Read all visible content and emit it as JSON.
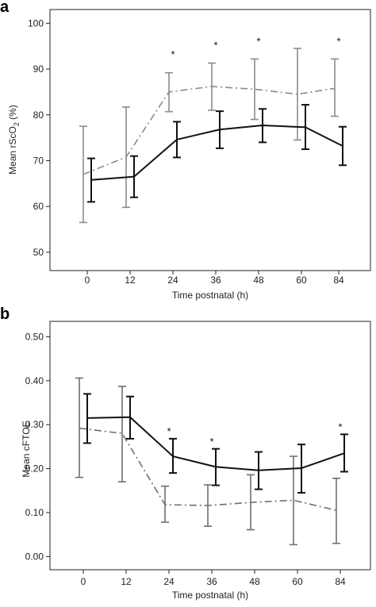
{
  "chart_data": [
    {
      "panel": "a",
      "type": "line",
      "xlabel": "Time postnatal (h)",
      "ylabel_main": "Mean rScO",
      "ylabel_sub": "2",
      "ylabel_tail": " (%)",
      "categories": [
        "0",
        "12",
        "24",
        "36",
        "48",
        "60",
        "84"
      ],
      "yticks": [
        "50",
        "60",
        "70",
        "80",
        "90",
        "100"
      ],
      "ylim": [
        46,
        103
      ],
      "series": [
        {
          "style": "solid",
          "color": "#111111",
          "values": [
            65.8,
            66.5,
            74.6,
            76.8,
            77.7,
            77.3,
            73.2
          ],
          "err_low": [
            61.0,
            62.0,
            70.7,
            72.7,
            74.0,
            72.5,
            69.0
          ],
          "err_high": [
            70.5,
            71.0,
            78.5,
            80.8,
            81.3,
            82.2,
            77.4
          ]
        },
        {
          "style": "dashdot",
          "color": "#8c8c8c",
          "values": [
            67.0,
            70.8,
            85.0,
            86.2,
            85.6,
            84.5,
            85.8
          ],
          "err_low": [
            56.5,
            59.8,
            80.7,
            81.0,
            79.0,
            74.5,
            79.7
          ],
          "err_high": [
            77.5,
            81.7,
            89.2,
            91.3,
            92.2,
            94.5,
            92.2
          ]
        }
      ],
      "annotations": [
        {
          "label": "*",
          "category": "24",
          "y": 93.5
        },
        {
          "label": "*",
          "category": "36",
          "y": 95.5
        },
        {
          "label": "*",
          "category": "48",
          "y": 96.3
        },
        {
          "label": "*",
          "category": "84",
          "y": 96.3
        }
      ]
    },
    {
      "panel": "b",
      "type": "line",
      "xlabel": "Time postnatal (h)",
      "ylabel_main": "Mean cFTOE",
      "categories": [
        "0",
        "12",
        "24",
        "36",
        "48",
        "60",
        "84"
      ],
      "yticks": [
        "0.00",
        "0.10",
        "0.20",
        "0.30",
        "0.40",
        "0.50"
      ],
      "ylim": [
        -0.03,
        0.535
      ],
      "series": [
        {
          "style": "solid",
          "color": "#111111",
          "values": [
            0.315,
            0.317,
            0.228,
            0.204,
            0.196,
            0.201,
            0.235
          ],
          "err_low": [
            0.258,
            0.268,
            0.19,
            0.162,
            0.153,
            0.145,
            0.193
          ],
          "err_high": [
            0.37,
            0.364,
            0.268,
            0.245,
            0.238,
            0.255,
            0.278
          ]
        },
        {
          "style": "dashdot",
          "color": "#6f6f6f",
          "values": [
            0.292,
            0.28,
            0.118,
            0.116,
            0.123,
            0.128,
            0.105
          ],
          "err_low": [
            0.18,
            0.17,
            0.078,
            0.069,
            0.061,
            0.027,
            0.03
          ],
          "err_high": [
            0.406,
            0.387,
            0.16,
            0.163,
            0.186,
            0.228,
            0.178
          ]
        }
      ],
      "annotations": [
        {
          "label": "*",
          "category": "24",
          "y": 0.288
        },
        {
          "label": "*",
          "category": "36",
          "y": 0.264
        },
        {
          "label": "*",
          "category": "84",
          "y": 0.298
        }
      ]
    }
  ]
}
